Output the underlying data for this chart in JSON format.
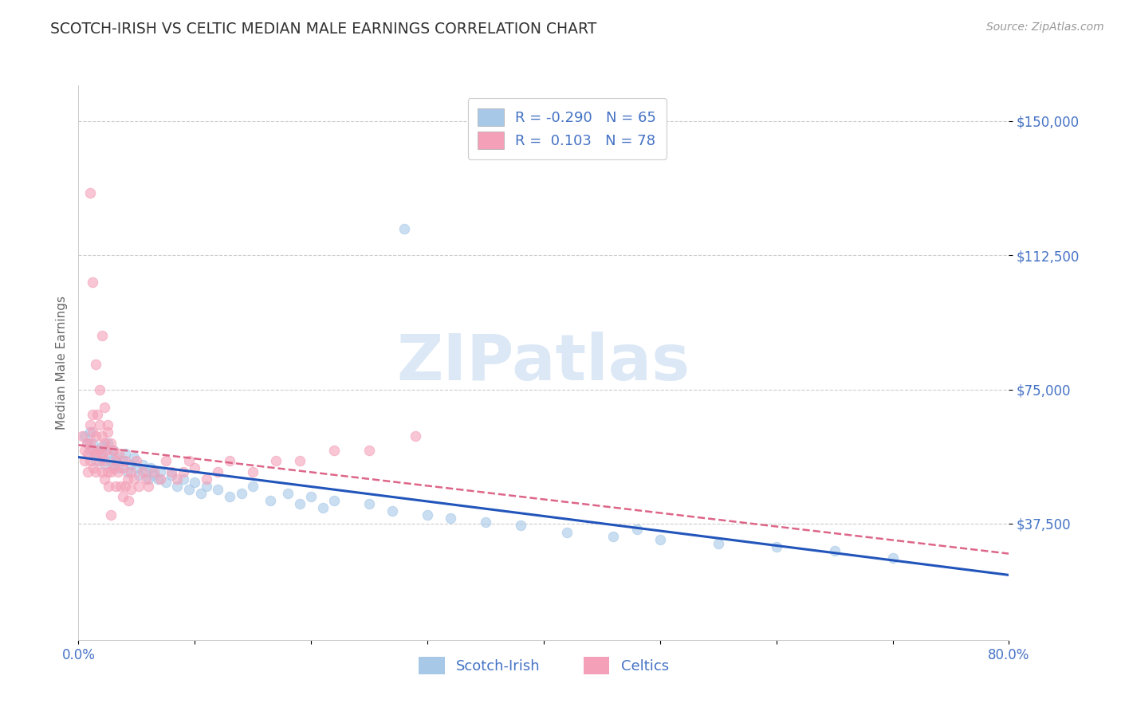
{
  "title": "SCOTCH-IRISH VS CELTIC MEDIAN MALE EARNINGS CORRELATION CHART",
  "source": "Source: ZipAtlas.com",
  "ylabel": "Median Male Earnings",
  "xmin": 0.0,
  "xmax": 0.8,
  "ymin": 5000,
  "ymax": 160000,
  "yticks": [
    37500,
    75000,
    112500,
    150000
  ],
  "ytick_labels": [
    "$37,500",
    "$75,000",
    "$112,500",
    "$150,000"
  ],
  "xticks": [
    0.0,
    0.1,
    0.2,
    0.3,
    0.4,
    0.5,
    0.6,
    0.7,
    0.8
  ],
  "xtick_labels": [
    "0.0%",
    "",
    "",
    "",
    "",
    "",
    "",
    "",
    "80.0%"
  ],
  "scotch_irish_R": -0.29,
  "scotch_irish_N": 65,
  "celtics_R": 0.103,
  "celtics_N": 78,
  "scotch_irish_color": "#a8c8e8",
  "celtics_color": "#f4a0b8",
  "trend_scotch_color": "#2255bb",
  "trend_celtic_color": "#dd6688",
  "scatter_alpha": 0.6,
  "marker_size": 80,
  "background_color": "#ffffff",
  "grid_color": "#cccccc",
  "title_color": "#333333",
  "axis_label_color": "#666666",
  "tick_label_color": "#4472c4",
  "watermark_text": "ZIPatlas",
  "watermark_color": "#dce8f5",
  "legend_color": "#4472c4",
  "scotch_irish_x": [
    0.005,
    0.008,
    0.01,
    0.01,
    0.012,
    0.015,
    0.015,
    0.018,
    0.02,
    0.02,
    0.022,
    0.025,
    0.025,
    0.028,
    0.03,
    0.03,
    0.032,
    0.035,
    0.038,
    0.04,
    0.042,
    0.045,
    0.048,
    0.05,
    0.052,
    0.055,
    0.058,
    0.06,
    0.062,
    0.065,
    0.068,
    0.07,
    0.075,
    0.08,
    0.085,
    0.09,
    0.095,
    0.1,
    0.105,
    0.11,
    0.12,
    0.13,
    0.14,
    0.15,
    0.165,
    0.18,
    0.19,
    0.2,
    0.21,
    0.22,
    0.25,
    0.27,
    0.3,
    0.32,
    0.35,
    0.38,
    0.42,
    0.46,
    0.5,
    0.55,
    0.6,
    0.65,
    0.7,
    0.48,
    0.28
  ],
  "scotch_irish_y": [
    62000,
    60000,
    58000,
    63000,
    60000,
    57000,
    55000,
    58000,
    56000,
    59000,
    54000,
    57000,
    60000,
    55000,
    58000,
    54000,
    56000,
    53000,
    55000,
    57000,
    52000,
    54000,
    56000,
    53000,
    51000,
    54000,
    52000,
    50000,
    53000,
    51000,
    50000,
    52000,
    49000,
    51000,
    48000,
    50000,
    47000,
    49000,
    46000,
    48000,
    47000,
    45000,
    46000,
    48000,
    44000,
    46000,
    43000,
    45000,
    42000,
    44000,
    43000,
    41000,
    40000,
    39000,
    38000,
    37000,
    35000,
    34000,
    33000,
    32000,
    31000,
    30000,
    28000,
    36000,
    120000
  ],
  "celtics_x": [
    0.003,
    0.005,
    0.005,
    0.007,
    0.008,
    0.008,
    0.01,
    0.01,
    0.01,
    0.012,
    0.012,
    0.013,
    0.013,
    0.015,
    0.015,
    0.015,
    0.016,
    0.016,
    0.018,
    0.018,
    0.02,
    0.02,
    0.02,
    0.022,
    0.022,
    0.022,
    0.024,
    0.025,
    0.025,
    0.026,
    0.028,
    0.028,
    0.03,
    0.03,
    0.032,
    0.032,
    0.034,
    0.035,
    0.036,
    0.038,
    0.038,
    0.04,
    0.04,
    0.042,
    0.043,
    0.045,
    0.045,
    0.048,
    0.05,
    0.052,
    0.055,
    0.058,
    0.06,
    0.065,
    0.07,
    0.075,
    0.08,
    0.085,
    0.09,
    0.095,
    0.1,
    0.11,
    0.12,
    0.13,
    0.15,
    0.17,
    0.19,
    0.22,
    0.25,
    0.29,
    0.01,
    0.012,
    0.015,
    0.018,
    0.02,
    0.022,
    0.025,
    0.028
  ],
  "celtics_y": [
    62000,
    58000,
    55000,
    60000,
    57000,
    52000,
    65000,
    60000,
    55000,
    68000,
    63000,
    58000,
    53000,
    62000,
    57000,
    52000,
    68000,
    58000,
    65000,
    55000,
    62000,
    57000,
    52000,
    60000,
    55000,
    50000,
    58000,
    63000,
    52000,
    48000,
    60000,
    52000,
    58000,
    53000,
    55000,
    48000,
    52000,
    57000,
    48000,
    53000,
    45000,
    55000,
    48000,
    50000,
    44000,
    52000,
    47000,
    50000,
    55000,
    48000,
    52000,
    50000,
    48000,
    52000,
    50000,
    55000,
    52000,
    50000,
    52000,
    55000,
    53000,
    50000,
    52000,
    55000,
    52000,
    55000,
    55000,
    58000,
    58000,
    62000,
    130000,
    105000,
    82000,
    75000,
    90000,
    70000,
    65000,
    40000
  ]
}
